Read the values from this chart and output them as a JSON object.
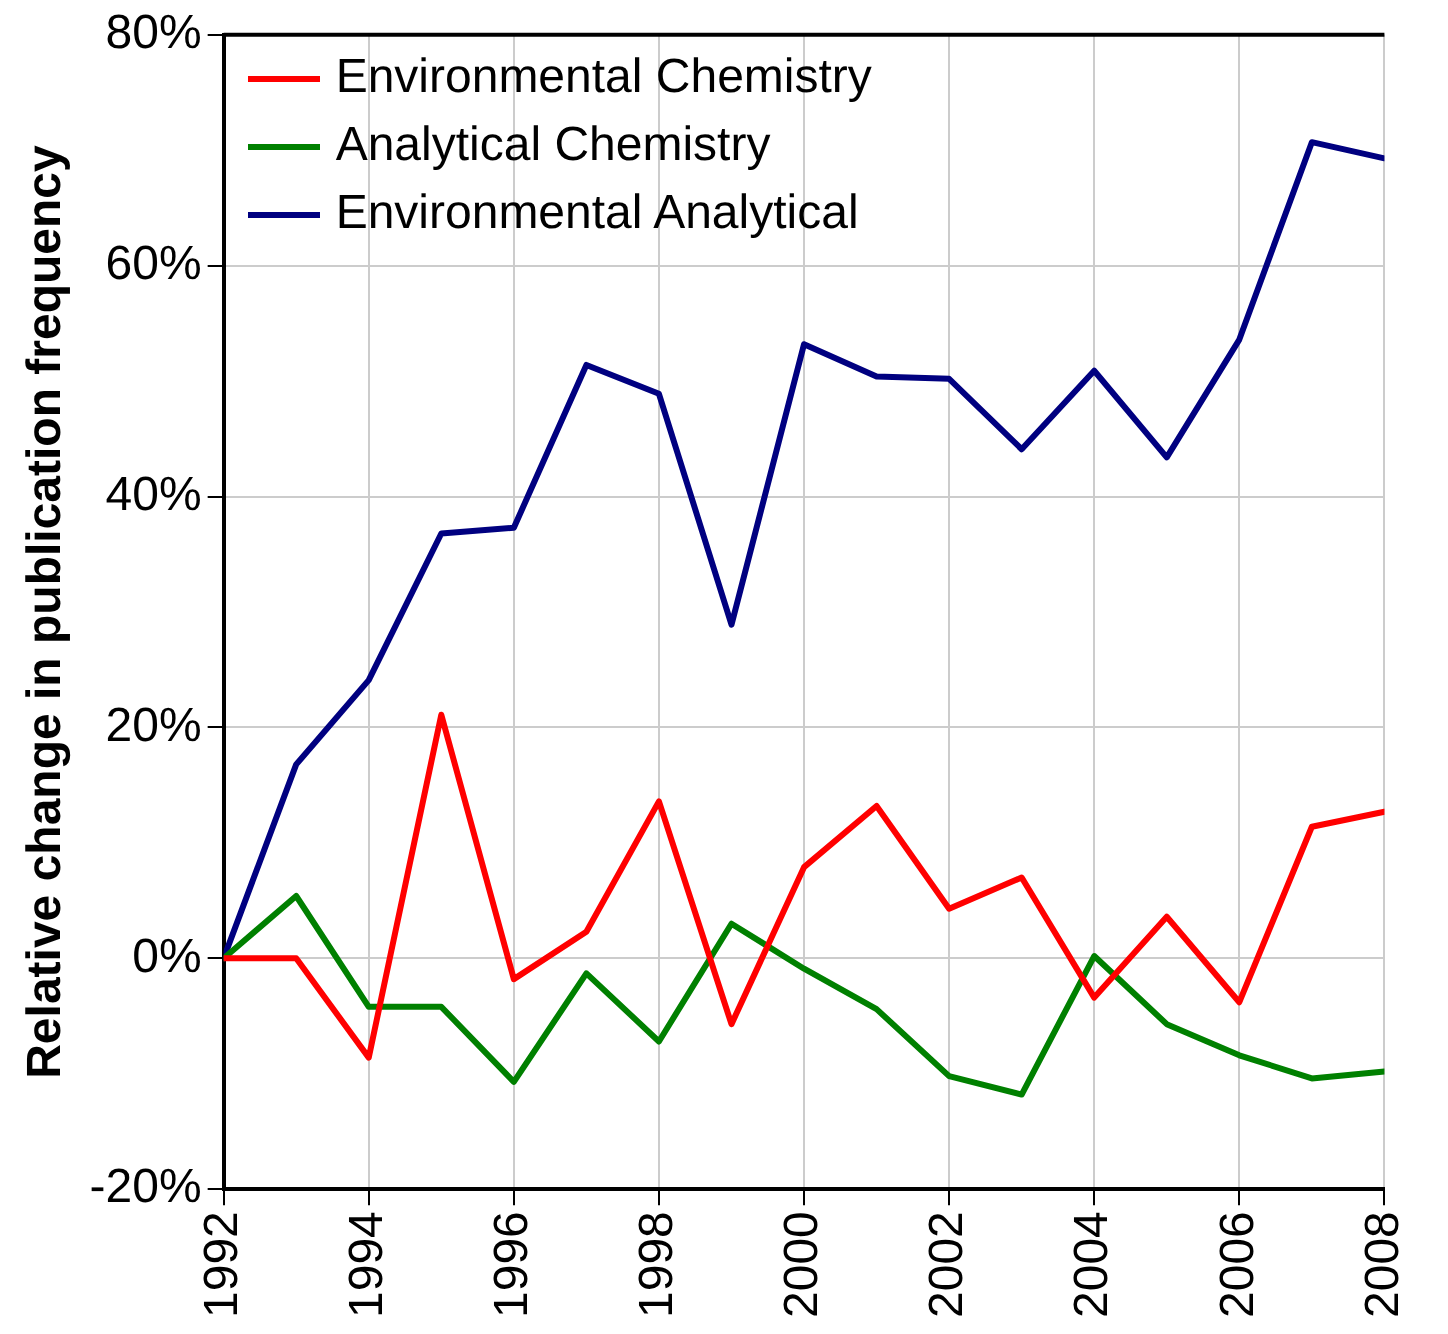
{
  "chart_data": {
    "type": "line",
    "ylabel": "Relative change in publication frequency",
    "x": [
      1992,
      1993,
      1994,
      1995,
      1996,
      1997,
      1998,
      1999,
      2000,
      2001,
      2002,
      2003,
      2004,
      2005,
      2006,
      2007,
      2008
    ],
    "xlim": [
      1992,
      2008
    ],
    "xticks": [
      1992,
      1994,
      1996,
      1998,
      2000,
      2002,
      2004,
      2006,
      2008
    ],
    "ylim": [
      -20,
      80
    ],
    "yticks": [
      {
        "value": -20,
        "label": "-20%"
      },
      {
        "value": 0,
        "label": "0%"
      },
      {
        "value": 20,
        "label": "20%"
      },
      {
        "value": 40,
        "label": "40%"
      },
      {
        "value": 60,
        "label": "60%"
      },
      {
        "value": 80,
        "label": "80%"
      }
    ],
    "series": [
      {
        "name": "Environmental Chemistry",
        "color": "#ff0000",
        "values": [
          0,
          0,
          -8.6,
          21.1,
          -1.8,
          2.3,
          13.6,
          -5.7,
          7.9,
          13.2,
          4.3,
          7.0,
          -3.4,
          3.6,
          -3.8,
          11.4,
          12.7
        ]
      },
      {
        "name": "Analytical Chemistry",
        "color": "#008000",
        "values": [
          0,
          5.4,
          -4.2,
          -4.2,
          -10.7,
          -1.3,
          -7.2,
          3.0,
          -0.9,
          -4.4,
          -10.2,
          -11.8,
          0.2,
          -5.7,
          -8.4,
          -10.4,
          -9.8
        ]
      },
      {
        "name": "Environmental Analytical",
        "color": "#000080",
        "values": [
          0,
          16.8,
          24.1,
          36.8,
          37.3,
          51.4,
          48.9,
          28.9,
          53.2,
          50.4,
          50.2,
          44.1,
          50.9,
          43.4,
          53.6,
          70.7,
          69.3
        ]
      }
    ],
    "grid": true,
    "legend": "top left",
    "marker": "none",
    "line_style": "solid"
  }
}
